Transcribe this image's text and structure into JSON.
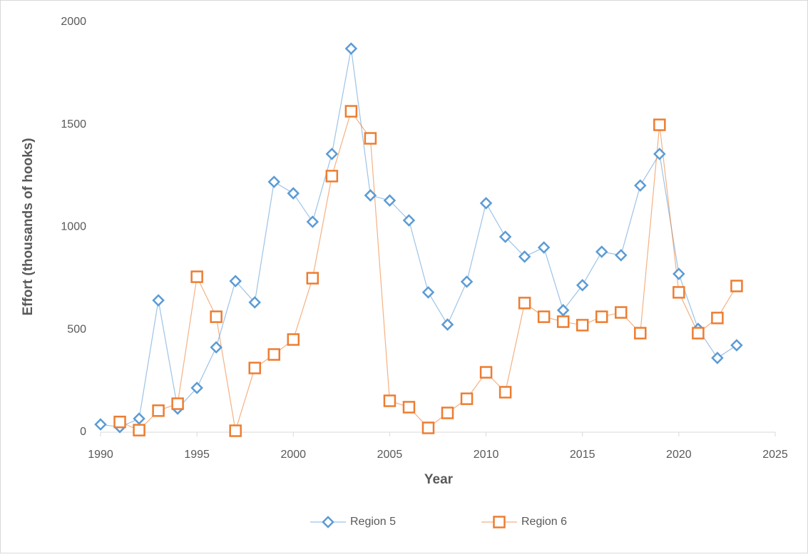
{
  "chart_data": {
    "type": "line",
    "x_label": "Year",
    "y_label": "Effort (thousands of hooks)",
    "x": [
      1990,
      1991,
      1992,
      1993,
      1994,
      1995,
      1996,
      1997,
      1998,
      1999,
      2000,
      2001,
      2002,
      2003,
      2004,
      2005,
      2006,
      2007,
      2008,
      2009,
      2010,
      2011,
      2012,
      2013,
      2014,
      2015,
      2016,
      2017,
      2018,
      2019,
      2020,
      2021,
      2022,
      2023
    ],
    "series": [
      {
        "name": "Region 5",
        "color": "#5b9bd5",
        "marker": "diamond",
        "values": [
          38,
          25,
          66,
          643,
          115,
          216,
          414,
          737,
          633,
          1221,
          1165,
          1026,
          1357,
          1871,
          1155,
          1130,
          1033,
          682,
          525,
          734,
          1117,
          953,
          856,
          901,
          595,
          717,
          880,
          863,
          1203,
          1357,
          772,
          504,
          362,
          424
        ]
      },
      {
        "name": "Region 6",
        "color": "#ed7d31",
        "marker": "square",
        "values": [
          null,
          50,
          10,
          105,
          139,
          758,
          563,
          7,
          313,
          379,
          452,
          751,
          1249,
          1565,
          1433,
          153,
          122,
          21,
          94,
          163,
          292,
          195,
          630,
          563,
          539,
          522,
          563,
          584,
          483,
          1499,
          682,
          483,
          557,
          713
        ]
      }
    ],
    "xlim": [
      1990,
      2025
    ],
    "xticks": [
      1990,
      1995,
      2000,
      2005,
      2010,
      2015,
      2020,
      2025
    ],
    "ylim": [
      0,
      2000
    ],
    "yticks": [
      0,
      500,
      1000,
      1500,
      2000
    ],
    "legend": "bottom"
  }
}
